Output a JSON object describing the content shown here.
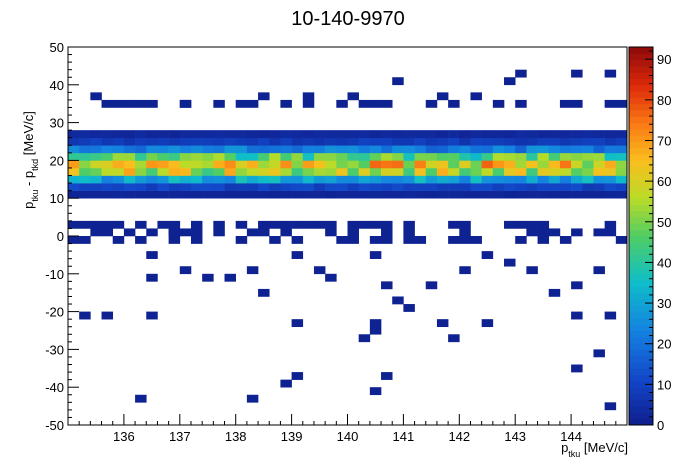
{
  "chart_data": {
    "type": "heatmap",
    "title": "10-140-9970",
    "xlabel": {
      "base": "p",
      "sub": "tku",
      "suffix": " [MeV/c]"
    },
    "ylabel": {
      "parts": [
        {
          "base": "p",
          "sub": "tku"
        },
        {
          "sep": " - "
        },
        {
          "base": "p",
          "sub": "tkd"
        }
      ],
      "suffix": " [MeV/c]"
    },
    "xlim": [
      135.0,
      145.0
    ],
    "ylim": [
      -50,
      50
    ],
    "x_bins": 50,
    "y_bins": 50,
    "x_ticks": [
      136,
      137,
      138,
      139,
      140,
      141,
      142,
      143,
      144
    ],
    "y_ticks": [
      -50,
      -40,
      -30,
      -20,
      -10,
      0,
      10,
      20,
      30,
      40,
      50
    ],
    "z_range": [
      0,
      93
    ],
    "z_ticks": [
      0,
      10,
      20,
      30,
      40,
      50,
      60,
      70,
      80,
      90
    ],
    "colormap": "kBird-like (dark blue → cyan → green → yellow → orange → dark red)",
    "grid": false,
    "legend": "colorbar on right",
    "band_profile": [
      {
        "y": 11,
        "value": 2
      },
      {
        "y": 13,
        "value": 10
      },
      {
        "y": 15,
        "value": 30
      },
      {
        "y": 17,
        "value": 55
      },
      {
        "y": 19,
        "value": 62
      },
      {
        "y": 21,
        "value": 45
      },
      {
        "y": 23,
        "value": 22
      },
      {
        "y": 25,
        "value": 8
      },
      {
        "y": 27,
        "value": 3
      }
    ],
    "band_note": "High-density band of entries centered near p_tku - p_tkd ≈ 17-19 MeV/c across the full x range; peak bin content about 90.",
    "sparse_points": [
      [
        135.5,
        37
      ],
      [
        136.3,
        35
      ],
      [
        137.2,
        35
      ],
      [
        138.1,
        35
      ],
      [
        138.5,
        37
      ],
      [
        139.3,
        37
      ],
      [
        140.2,
        37
      ],
      [
        140.9,
        41
      ],
      [
        141.7,
        37
      ],
      [
        142.3,
        37
      ],
      [
        142.8,
        41
      ],
      [
        143.2,
        43
      ],
      [
        144.1,
        43
      ],
      [
        144.7,
        43
      ],
      [
        135.3,
        3
      ],
      [
        135.7,
        1
      ],
      [
        136.4,
        -5
      ],
      [
        136.5,
        -11
      ],
      [
        136.9,
        1
      ],
      [
        137.1,
        -9
      ],
      [
        137.6,
        -11
      ],
      [
        137.9,
        -11
      ],
      [
        138.3,
        -9
      ],
      [
        138.6,
        -15
      ],
      [
        139.0,
        -5
      ],
      [
        139.4,
        -9
      ],
      [
        139.7,
        -11
      ],
      [
        140.4,
        -5
      ],
      [
        140.7,
        -13
      ],
      [
        140.9,
        -17
      ],
      [
        141.2,
        -19
      ],
      [
        141.6,
        -13
      ],
      [
        142.0,
        -9
      ],
      [
        142.4,
        -5
      ],
      [
        142.9,
        -7
      ],
      [
        143.3,
        -9
      ],
      [
        143.7,
        -15
      ],
      [
        144.2,
        -13
      ],
      [
        144.6,
        -9
      ],
      [
        135.3,
        -21
      ],
      [
        135.7,
        -21
      ],
      [
        136.4,
        -21
      ],
      [
        139.1,
        -23
      ],
      [
        140.4,
        -23
      ],
      [
        140.6,
        -25
      ],
      [
        141.7,
        -23
      ],
      [
        142.4,
        -23
      ],
      [
        144.1,
        -21
      ],
      [
        144.7,
        -21
      ],
      [
        140.3,
        -27
      ],
      [
        141.9,
        -27
      ],
      [
        144.5,
        -31
      ],
      [
        144.1,
        -35
      ],
      [
        139.1,
        -37
      ],
      [
        138.8,
        -39
      ],
      [
        140.7,
        -37
      ],
      [
        140.6,
        -41
      ],
      [
        136.3,
        -43
      ],
      [
        138.3,
        -43
      ],
      [
        144.7,
        -45
      ]
    ]
  }
}
